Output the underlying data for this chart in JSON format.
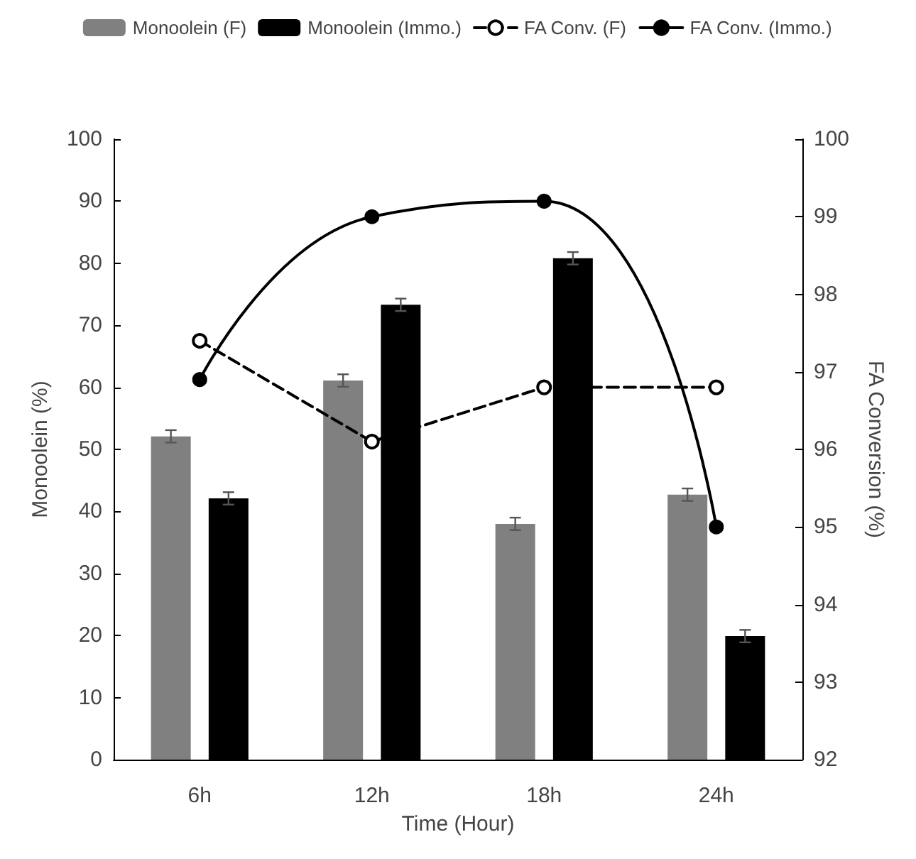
{
  "chart_data": {
    "type": "bar",
    "xlabel": "Time (Hour)",
    "ylabel": "Monoolein (%)",
    "y2label": "FA Conversion (%)",
    "categories": [
      "6h",
      "12h",
      "18h",
      "24h"
    ],
    "series": [
      {
        "name": "Monoolein (F)",
        "color": "#808080",
        "values": [
          52.1,
          61.1,
          38.0,
          42.7
        ],
        "errors": [
          1,
          1,
          1,
          1
        ]
      },
      {
        "name": "Monoolein (Immo.)",
        "color": "#000000",
        "values": [
          42.1,
          73.3,
          80.8,
          19.9
        ],
        "errors": [
          1,
          1,
          1,
          1
        ]
      },
      {
        "name": "FA Conv. (F)",
        "type": "line",
        "axis": "y2",
        "color": "#000000",
        "line_style": "dashed",
        "values": [
          97.4,
          96.1,
          96.8,
          96.8
        ]
      },
      {
        "name": "FA Conv. (Immo.)",
        "type": "line",
        "axis": "y2",
        "color": "#000000",
        "line_style": "solid",
        "values": [
          96.9,
          99.0,
          99.2,
          95.0
        ]
      }
    ],
    "ylim": [
      0,
      100
    ],
    "yticks": [
      0,
      10,
      20,
      30,
      40,
      50,
      60,
      70,
      80,
      90,
      100
    ],
    "y2lim": [
      92,
      100
    ],
    "y2ticks": [
      92,
      93,
      94,
      95,
      96,
      97,
      98,
      99,
      100
    ],
    "marker": "circle",
    "grid": false,
    "legend": "top"
  }
}
